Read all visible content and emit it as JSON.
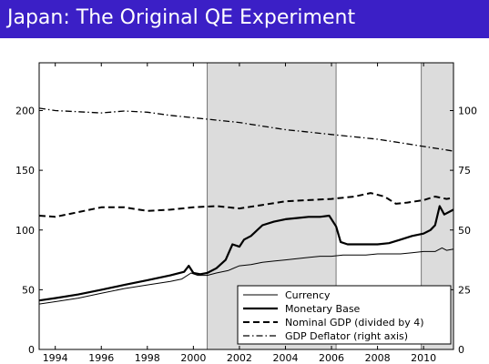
{
  "slide": {
    "title": "Japan: The Original QE Experiment"
  },
  "chart_data": {
    "type": "line",
    "title": "",
    "xlabel": "",
    "ylabel": "",
    "xlim": [
      1993.3,
      2011.3
    ],
    "ylim": [
      0,
      240
    ],
    "y2lim": [
      0,
      120
    ],
    "x_ticks": [
      1994,
      1996,
      1998,
      2000,
      2002,
      2004,
      2006,
      2008,
      2010
    ],
    "x_tick_labels": [
      "1994",
      "1996",
      "1998",
      "2000",
      "2002",
      "2004",
      "2006",
      "2008",
      "2010"
    ],
    "y_ticks": [
      0,
      50,
      100,
      150,
      200
    ],
    "y_tick_labels": [
      "0",
      "50",
      "100",
      "150",
      "200"
    ],
    "y2_ticks": [
      0,
      25,
      50,
      75,
      100
    ],
    "y2_tick_labels": [
      "0",
      "25",
      "50",
      "75",
      "100"
    ],
    "grid": false,
    "shaded_periods": [
      [
        2000.6,
        2006.2
      ],
      [
        2009.9,
        2011.3
      ]
    ],
    "legend": {
      "placement": "bottom-right"
    },
    "series": [
      {
        "name": "Currency",
        "style": "solid-thin",
        "axis": "left",
        "color": "#000000",
        "x": [
          1993.3,
          1994,
          1995,
          1996,
          1997,
          1998,
          1999,
          1999.5,
          1999.9,
          2000.2,
          2000.6,
          2001,
          2001.5,
          2002,
          2002.5,
          2003,
          2003.5,
          2004,
          2004.5,
          2005,
          2005.5,
          2006,
          2006.5,
          2007,
          2007.5,
          2008,
          2008.5,
          2009,
          2009.5,
          2010,
          2010.5,
          2010.8,
          2011,
          2011.3
        ],
        "y": [
          38,
          40,
          43,
          47,
          51,
          54,
          57,
          59,
          64,
          62,
          62,
          64,
          66,
          70,
          71,
          73,
          74,
          75,
          76,
          77,
          78,
          78,
          79,
          79,
          79,
          80,
          80,
          80,
          81,
          82,
          82,
          85,
          83,
          84
        ]
      },
      {
        "name": "Monetary Base",
        "style": "solid-thick",
        "axis": "left",
        "color": "#000000",
        "x": [
          1993.3,
          1994,
          1995,
          1996,
          1997,
          1998,
          1999,
          1999.6,
          1999.8,
          2000,
          2000.3,
          2000.6,
          2001,
          2001.4,
          2001.7,
          2002,
          2002.2,
          2002.5,
          2003,
          2003.5,
          2004,
          2004.5,
          2005,
          2005.5,
          2005.9,
          2006.2,
          2006.4,
          2006.7,
          2007,
          2007.5,
          2008,
          2008.5,
          2009,
          2009.5,
          2010,
          2010.3,
          2010.5,
          2010.7,
          2010.9,
          2011.3
        ],
        "y": [
          41,
          43,
          46,
          50,
          54,
          58,
          62,
          65,
          70,
          64,
          63,
          64,
          68,
          75,
          88,
          86,
          92,
          95,
          104,
          107,
          109,
          110,
          111,
          111,
          112,
          103,
          90,
          88,
          88,
          88,
          88,
          89,
          92,
          95,
          97,
          100,
          104,
          120,
          113,
          117
        ]
      },
      {
        "name": "Nominal GDP (divided by 4)",
        "style": "dashed",
        "axis": "left",
        "color": "#000000",
        "x": [
          1993.3,
          1994,
          1995,
          1996,
          1997,
          1998,
          1999,
          2000,
          2001,
          2002,
          2003,
          2004,
          2005,
          2006,
          2007,
          2007.7,
          2008.3,
          2008.8,
          2009.3,
          2010,
          2010.5,
          2011,
          2011.3
        ],
        "y": [
          112,
          111,
          115,
          119,
          119,
          116,
          117,
          119,
          120,
          118,
          121,
          124,
          125,
          126,
          128,
          131,
          128,
          122,
          123,
          125,
          128,
          126,
          127
        ]
      },
      {
        "name": "GDP Deflator (right axis)",
        "style": "dash-dot",
        "axis": "right",
        "color": "#000000",
        "x": [
          1993.3,
          1994,
          1995,
          1996,
          1997,
          1998,
          1999,
          2000,
          2001,
          2002,
          2003,
          2004,
          2005,
          2006,
          2007,
          2008,
          2009,
          2010,
          2011,
          2011.3
        ],
        "y": [
          101,
          100,
          99.5,
          99,
          99.8,
          99.3,
          98,
          97,
          96,
          95,
          93.5,
          92,
          91,
          90,
          89,
          88,
          86.5,
          85,
          83.5,
          83
        ]
      }
    ]
  }
}
